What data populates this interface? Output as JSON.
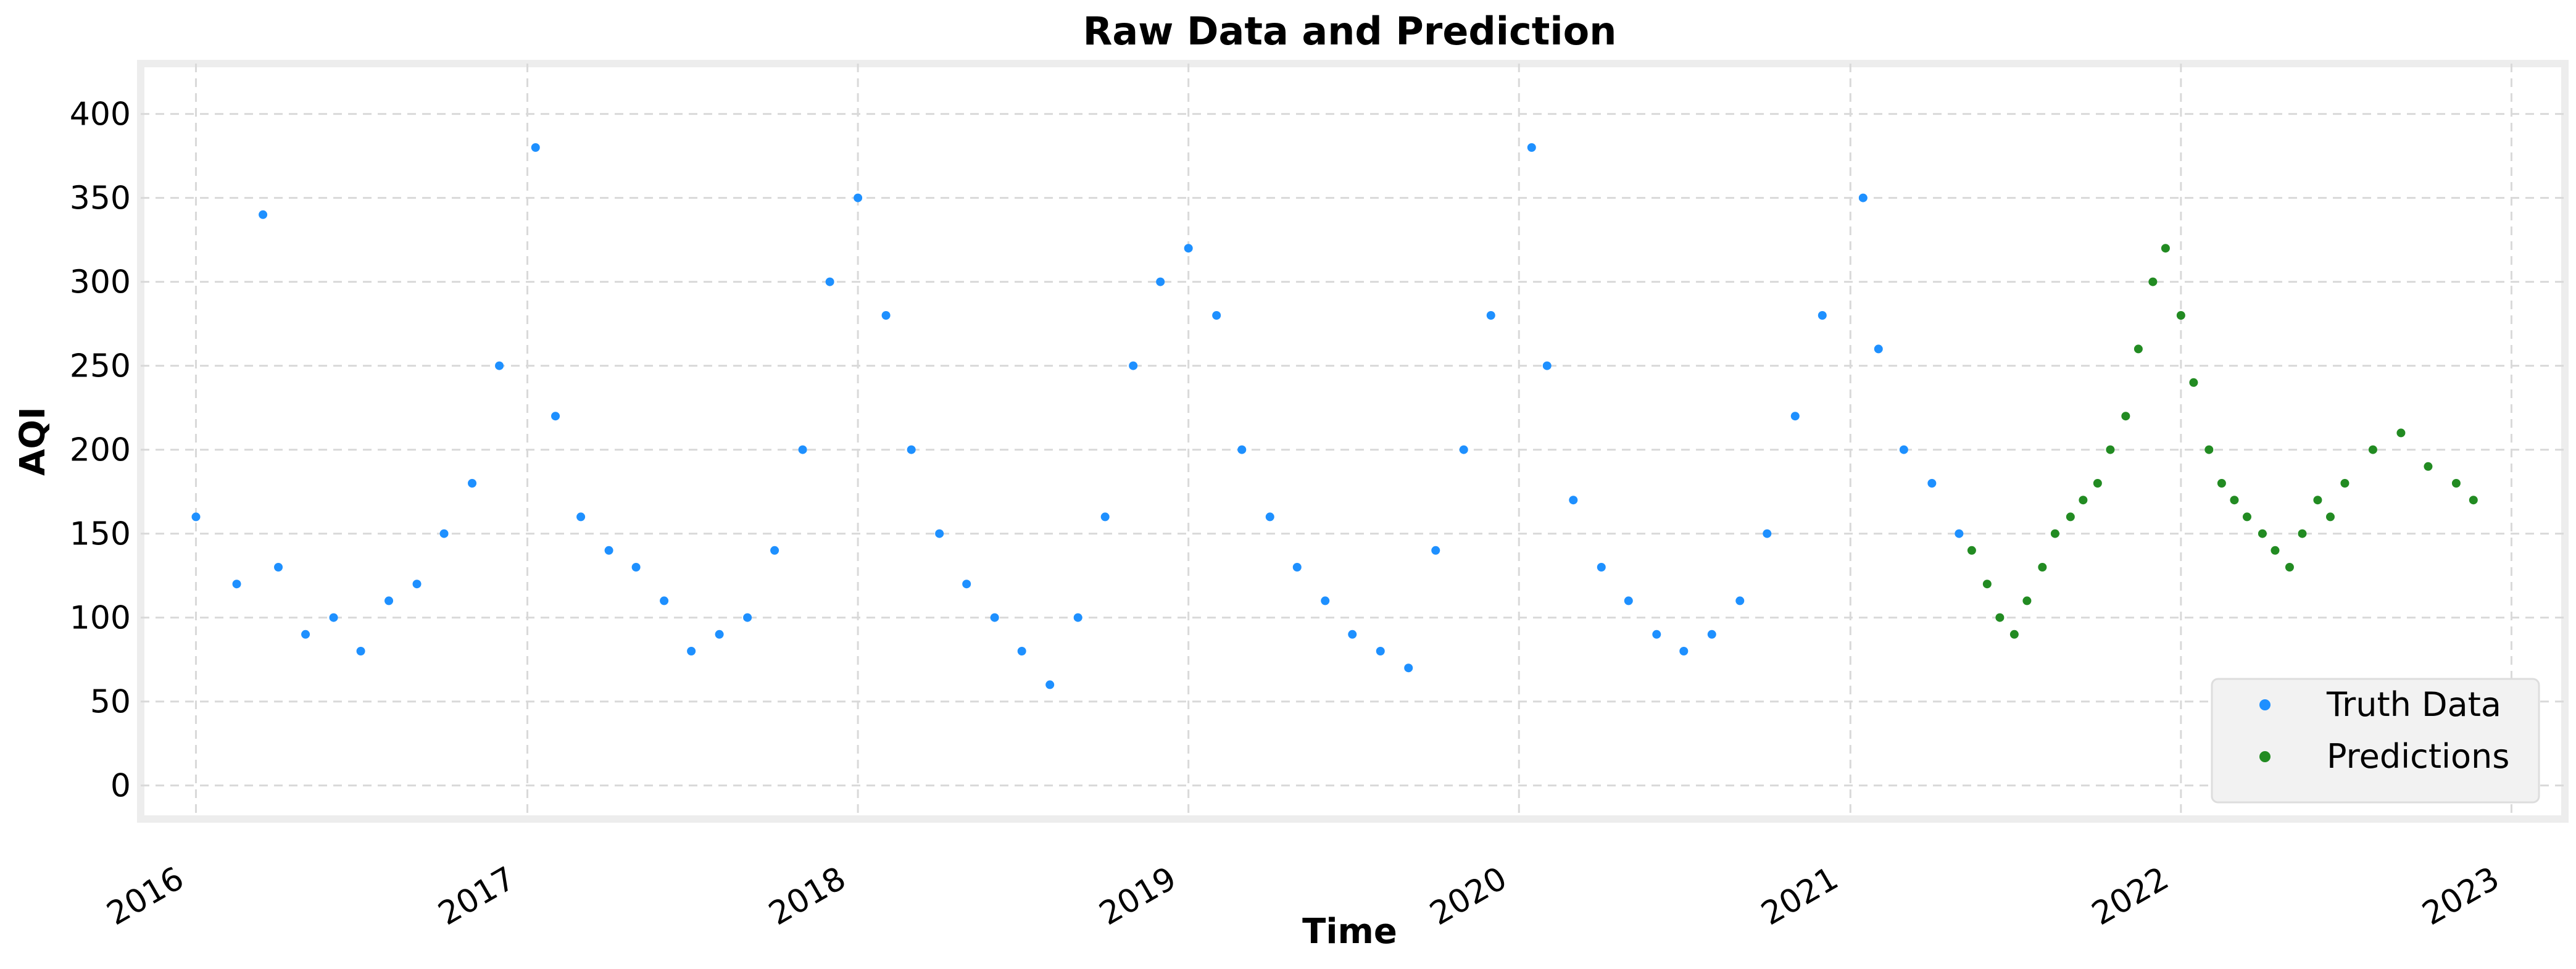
{
  "chart_data": {
    "type": "scatter",
    "title": "Raw Data and Prediction",
    "xlabel": "Time",
    "ylabel": "AQI",
    "x_axis": {
      "type": "time",
      "range": [
        "2015-11-01",
        "2023-03-01"
      ],
      "tick_labels": [
        "2016",
        "2017",
        "2018",
        "2019",
        "2020",
        "2021",
        "2022",
        "2023"
      ]
    },
    "y_axis": {
      "range": [
        -20,
        430
      ],
      "ticks": [
        0,
        50,
        100,
        150,
        200,
        250,
        300,
        350,
        400
      ]
    },
    "grid": true,
    "legend_placement": "bottom-right",
    "series": [
      {
        "name": "Truth Data",
        "color": "#1e90ff",
        "points": [
          [
            "2016-01-01",
            160
          ],
          [
            "2016-02-15",
            120
          ],
          [
            "2016-03-15",
            340
          ],
          [
            "2016-04-01",
            130
          ],
          [
            "2016-05-01",
            90
          ],
          [
            "2016-06-01",
            100
          ],
          [
            "2016-07-01",
            80
          ],
          [
            "2016-08-01",
            110
          ],
          [
            "2016-09-01",
            120
          ],
          [
            "2016-10-01",
            150
          ],
          [
            "2016-11-01",
            180
          ],
          [
            "2016-12-01",
            250
          ],
          [
            "2017-01-10",
            380
          ],
          [
            "2017-02-01",
            220
          ],
          [
            "2017-03-01",
            160
          ],
          [
            "2017-04-01",
            140
          ],
          [
            "2017-05-01",
            130
          ],
          [
            "2017-06-01",
            110
          ],
          [
            "2017-07-01",
            80
          ],
          [
            "2017-08-01",
            90
          ],
          [
            "2017-09-01",
            100
          ],
          [
            "2017-10-01",
            140
          ],
          [
            "2017-11-01",
            200
          ],
          [
            "2017-12-01",
            300
          ],
          [
            "2018-01-01",
            350
          ],
          [
            "2018-02-01",
            280
          ],
          [
            "2018-03-01",
            200
          ],
          [
            "2018-04-01",
            150
          ],
          [
            "2018-05-01",
            120
          ],
          [
            "2018-06-01",
            100
          ],
          [
            "2018-07-01",
            80
          ],
          [
            "2018-08-01",
            60
          ],
          [
            "2018-09-01",
            100
          ],
          [
            "2018-10-01",
            160
          ],
          [
            "2018-11-01",
            250
          ],
          [
            "2018-12-01",
            300
          ],
          [
            "2019-01-01",
            320
          ],
          [
            "2019-02-01",
            280
          ],
          [
            "2019-03-01",
            200
          ],
          [
            "2019-04-01",
            160
          ],
          [
            "2019-05-01",
            130
          ],
          [
            "2019-06-01",
            110
          ],
          [
            "2019-07-01",
            90
          ],
          [
            "2019-08-01",
            80
          ],
          [
            "2019-09-01",
            70
          ],
          [
            "2019-10-01",
            140
          ],
          [
            "2019-11-01",
            200
          ],
          [
            "2019-12-01",
            280
          ],
          [
            "2020-01-15",
            380
          ],
          [
            "2020-02-01",
            250
          ],
          [
            "2020-03-01",
            170
          ],
          [
            "2020-04-01",
            130
          ],
          [
            "2020-05-01",
            110
          ],
          [
            "2020-06-01",
            90
          ],
          [
            "2020-07-01",
            80
          ],
          [
            "2020-08-01",
            90
          ],
          [
            "2020-09-01",
            110
          ],
          [
            "2020-10-01",
            150
          ],
          [
            "2020-11-01",
            220
          ],
          [
            "2020-12-01",
            280
          ],
          [
            "2021-01-15",
            350
          ],
          [
            "2021-02-01",
            260
          ],
          [
            "2021-03-01",
            200
          ],
          [
            "2021-04-01",
            180
          ],
          [
            "2021-05-01",
            150
          ]
        ]
      },
      {
        "name": "Predictions",
        "color": "#228b22",
        "points": [
          [
            "2021-05-15",
            140
          ],
          [
            "2021-06-01",
            120
          ],
          [
            "2021-06-15",
            100
          ],
          [
            "2021-07-01",
            90
          ],
          [
            "2021-07-15",
            110
          ],
          [
            "2021-08-01",
            130
          ],
          [
            "2021-08-15",
            150
          ],
          [
            "2021-09-01",
            160
          ],
          [
            "2021-09-15",
            170
          ],
          [
            "2021-10-01",
            180
          ],
          [
            "2021-10-15",
            200
          ],
          [
            "2021-11-01",
            220
          ],
          [
            "2021-11-15",
            260
          ],
          [
            "2021-12-01",
            300
          ],
          [
            "2021-12-15",
            320
          ],
          [
            "2022-01-01",
            280
          ],
          [
            "2022-01-15",
            240
          ],
          [
            "2022-02-01",
            200
          ],
          [
            "2022-02-15",
            180
          ],
          [
            "2022-03-01",
            170
          ],
          [
            "2022-03-15",
            160
          ],
          [
            "2022-04-01",
            150
          ],
          [
            "2022-04-15",
            140
          ],
          [
            "2022-05-01",
            130
          ],
          [
            "2022-05-15",
            150
          ],
          [
            "2022-06-01",
            170
          ],
          [
            "2022-06-15",
            160
          ],
          [
            "2022-07-01",
            180
          ],
          [
            "2022-08-01",
            200
          ],
          [
            "2022-09-01",
            210
          ],
          [
            "2022-10-01",
            190
          ],
          [
            "2022-11-01",
            180
          ],
          [
            "2022-11-20",
            170
          ]
        ]
      }
    ]
  }
}
